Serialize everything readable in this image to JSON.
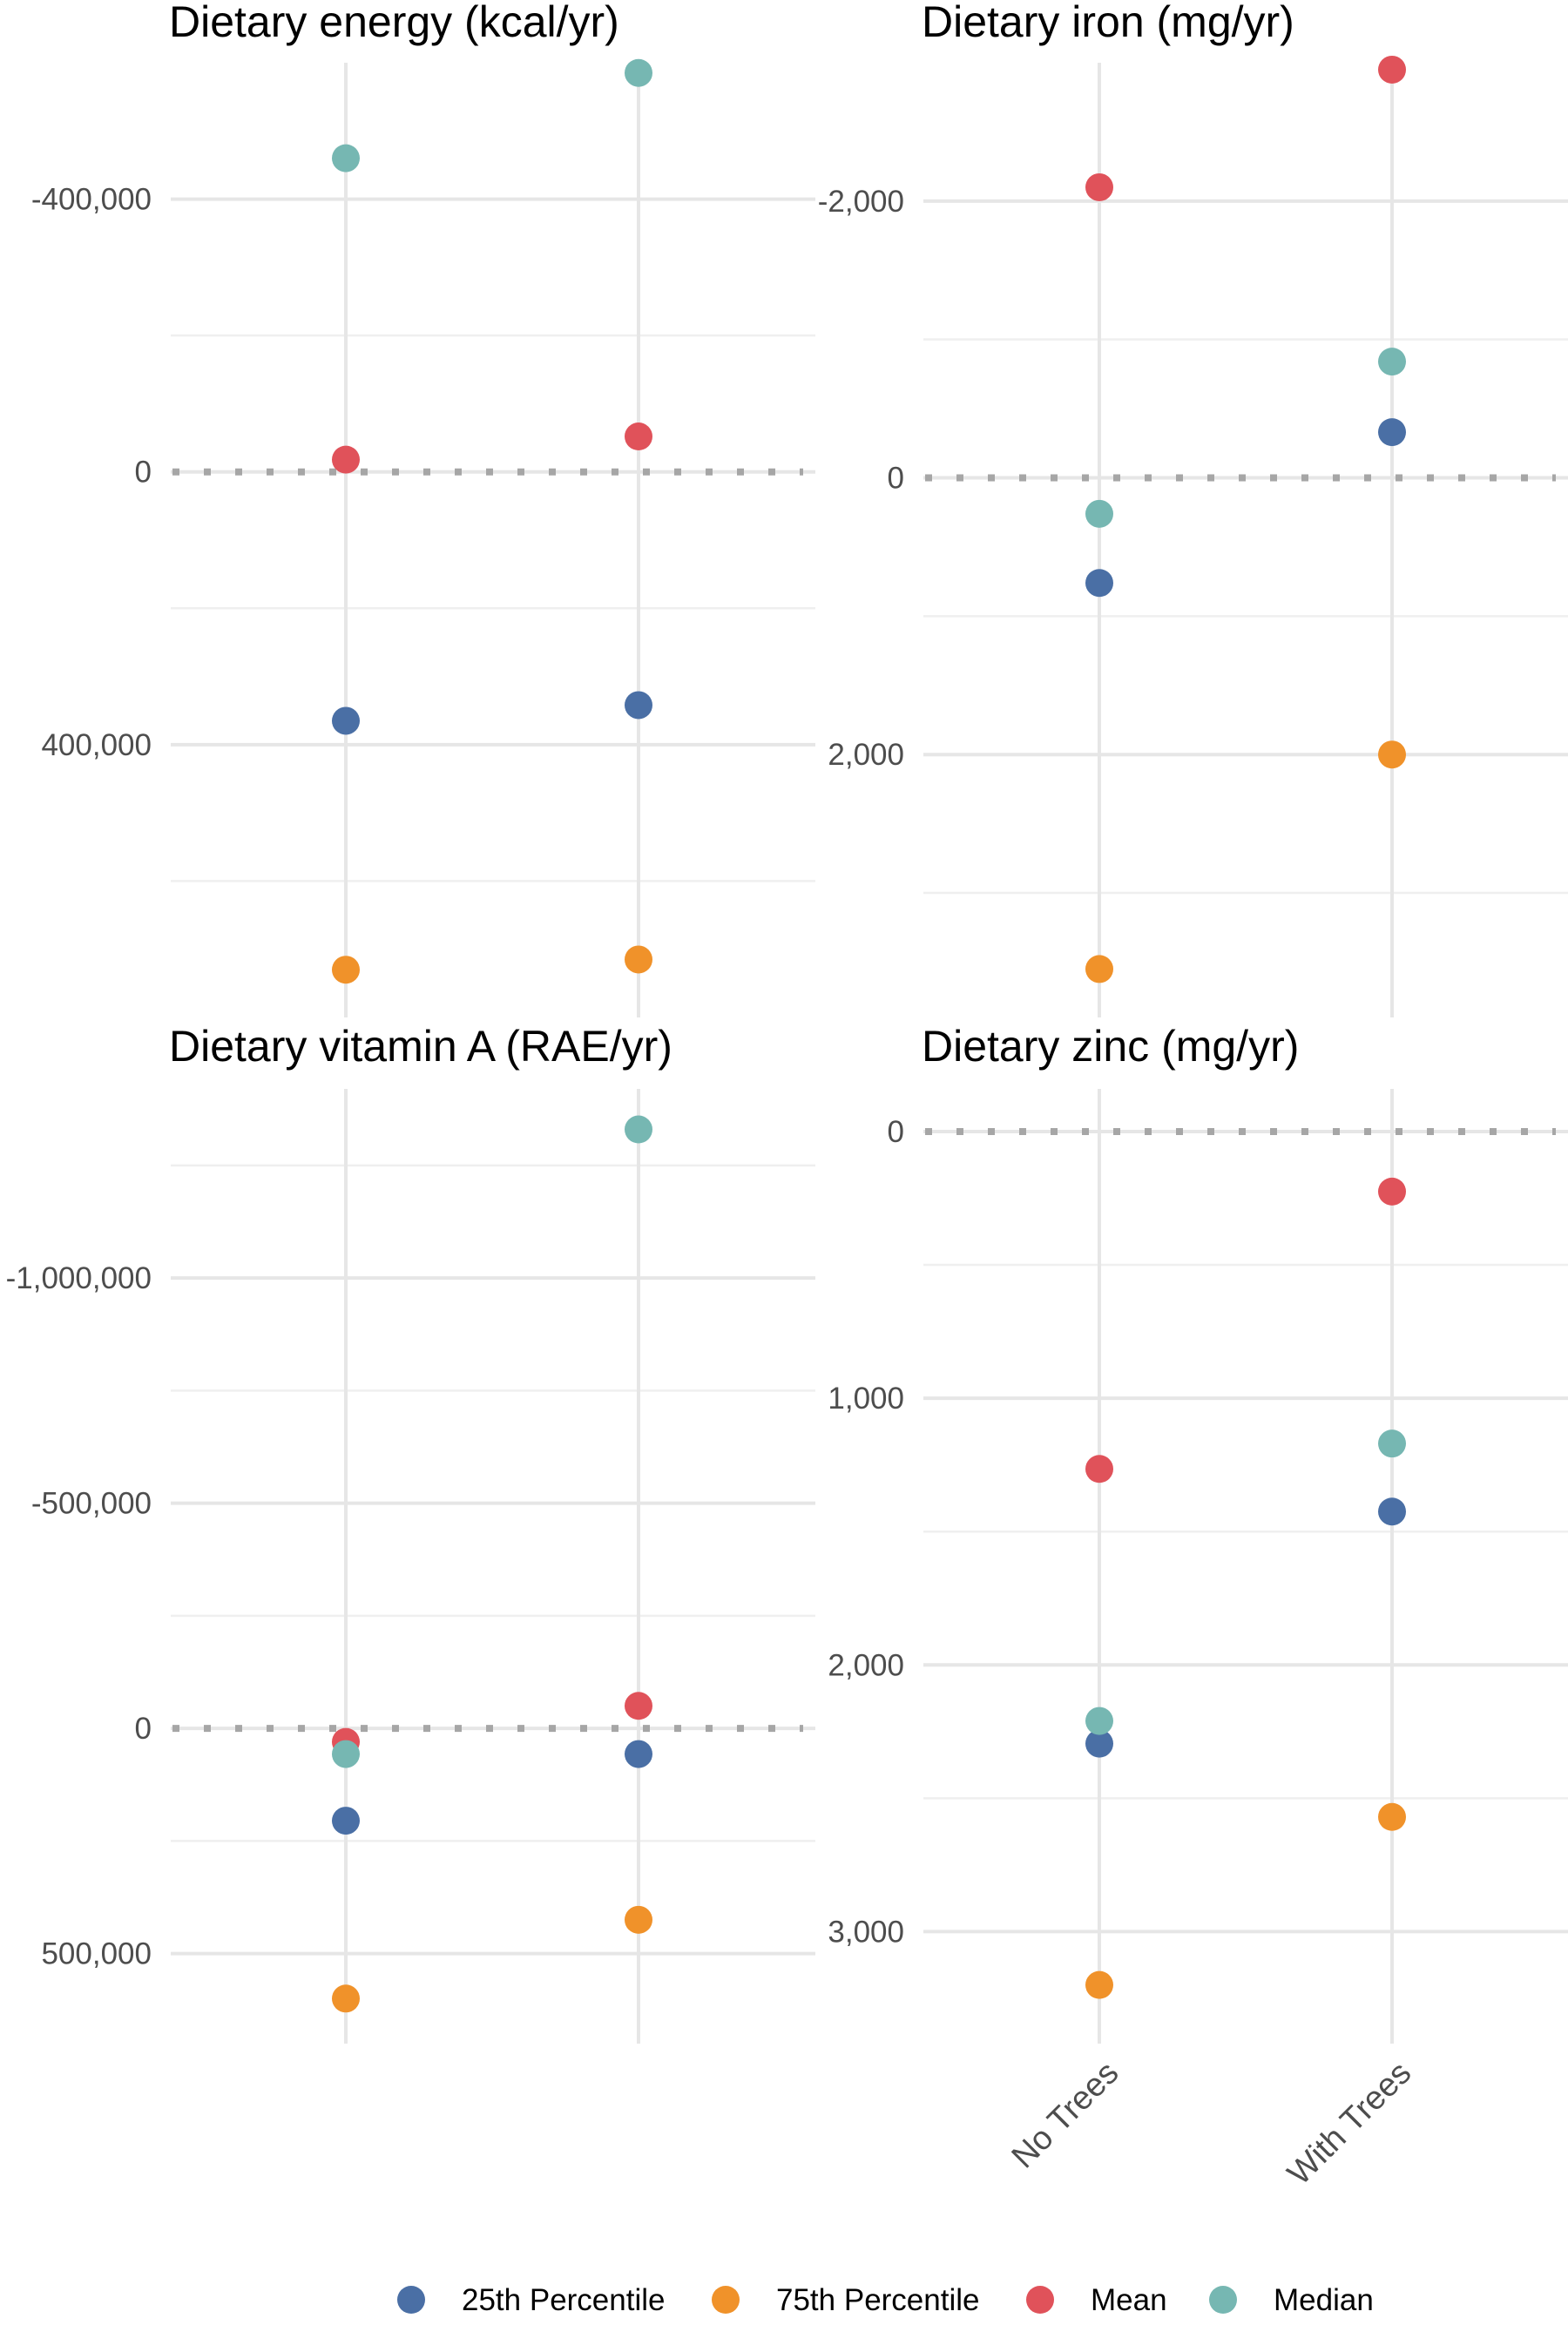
{
  "chart_data": {
    "type": "scatter",
    "categories": [
      "No Trees",
      "With Trees"
    ],
    "y_axis_reversed": true,
    "grid": true,
    "zero_reference_line": "dotted",
    "legend": {
      "position": "bottom",
      "entries": [
        {
          "name": "25th Percentile",
          "color": "#4a6fa5"
        },
        {
          "name": "75th Percentile",
          "color": "#f0922a"
        },
        {
          "name": "Mean",
          "color": "#e0525a"
        },
        {
          "name": "Median",
          "color": "#76b7b2"
        }
      ]
    },
    "panels": [
      {
        "title": "Dietary energy (kcal/yr)",
        "ylim": [
          -600000,
          800000
        ],
        "y_ticks": [
          -400000,
          0,
          400000
        ],
        "y_tick_labels": [
          "-400,000",
          "0",
          "400,000"
        ],
        "series": [
          {
            "name": "25th Percentile",
            "values": [
              365000,
              342000
            ]
          },
          {
            "name": "75th Percentile",
            "values": [
              730000,
              715000
            ]
          },
          {
            "name": "Mean",
            "values": [
              -18000,
              -52000
            ]
          },
          {
            "name": "Median",
            "values": [
              -460000,
              -585000
            ]
          }
        ]
      },
      {
        "title": "Dietary iron (mg/yr)",
        "ylim": [
          -3000,
          3900
        ],
        "y_ticks": [
          -2000,
          0,
          2000
        ],
        "y_tick_labels": [
          "-2,000",
          "0",
          "2,000"
        ],
        "series": [
          {
            "name": "25th Percentile",
            "values": [
              760,
              -330
            ]
          },
          {
            "name": "75th Percentile",
            "values": [
              3550,
              2000
            ]
          },
          {
            "name": "Mean",
            "values": [
              -2100,
              -2950
            ]
          },
          {
            "name": "Median",
            "values": [
              260,
              -840
            ]
          }
        ]
      },
      {
        "title": "Dietary vitamin A (RAE/yr)",
        "ylim": [
          -1420000,
          700000
        ],
        "y_ticks": [
          -1000000,
          -500000,
          0,
          500000
        ],
        "y_tick_labels": [
          "-1,000,000",
          "-500,000",
          "0",
          "500,000"
        ],
        "series": [
          {
            "name": "25th Percentile",
            "values": [
              205000,
              57000
            ]
          },
          {
            "name": "75th Percentile",
            "values": [
              600000,
              425000
            ]
          },
          {
            "name": "Mean",
            "values": [
              30000,
              -50000
            ]
          },
          {
            "name": "Median",
            "values": [
              57000,
              -1330000
            ]
          }
        ]
      },
      {
        "title": "Dietary zinc (mg/yr)",
        "ylim": [
          -160,
          3420
        ],
        "y_ticks": [
          0,
          1000,
          2000,
          3000
        ],
        "y_tick_labels": [
          "0",
          "1,000",
          "2,000",
          "3,000"
        ],
        "series": [
          {
            "name": "25th Percentile",
            "values": [
              2295,
              1425
            ]
          },
          {
            "name": "75th Percentile",
            "values": [
              3200,
              2570
            ]
          },
          {
            "name": "Mean",
            "values": [
              1265,
              225
            ]
          },
          {
            "name": "Median",
            "values": [
              2210,
              1170
            ]
          }
        ]
      }
    ]
  }
}
